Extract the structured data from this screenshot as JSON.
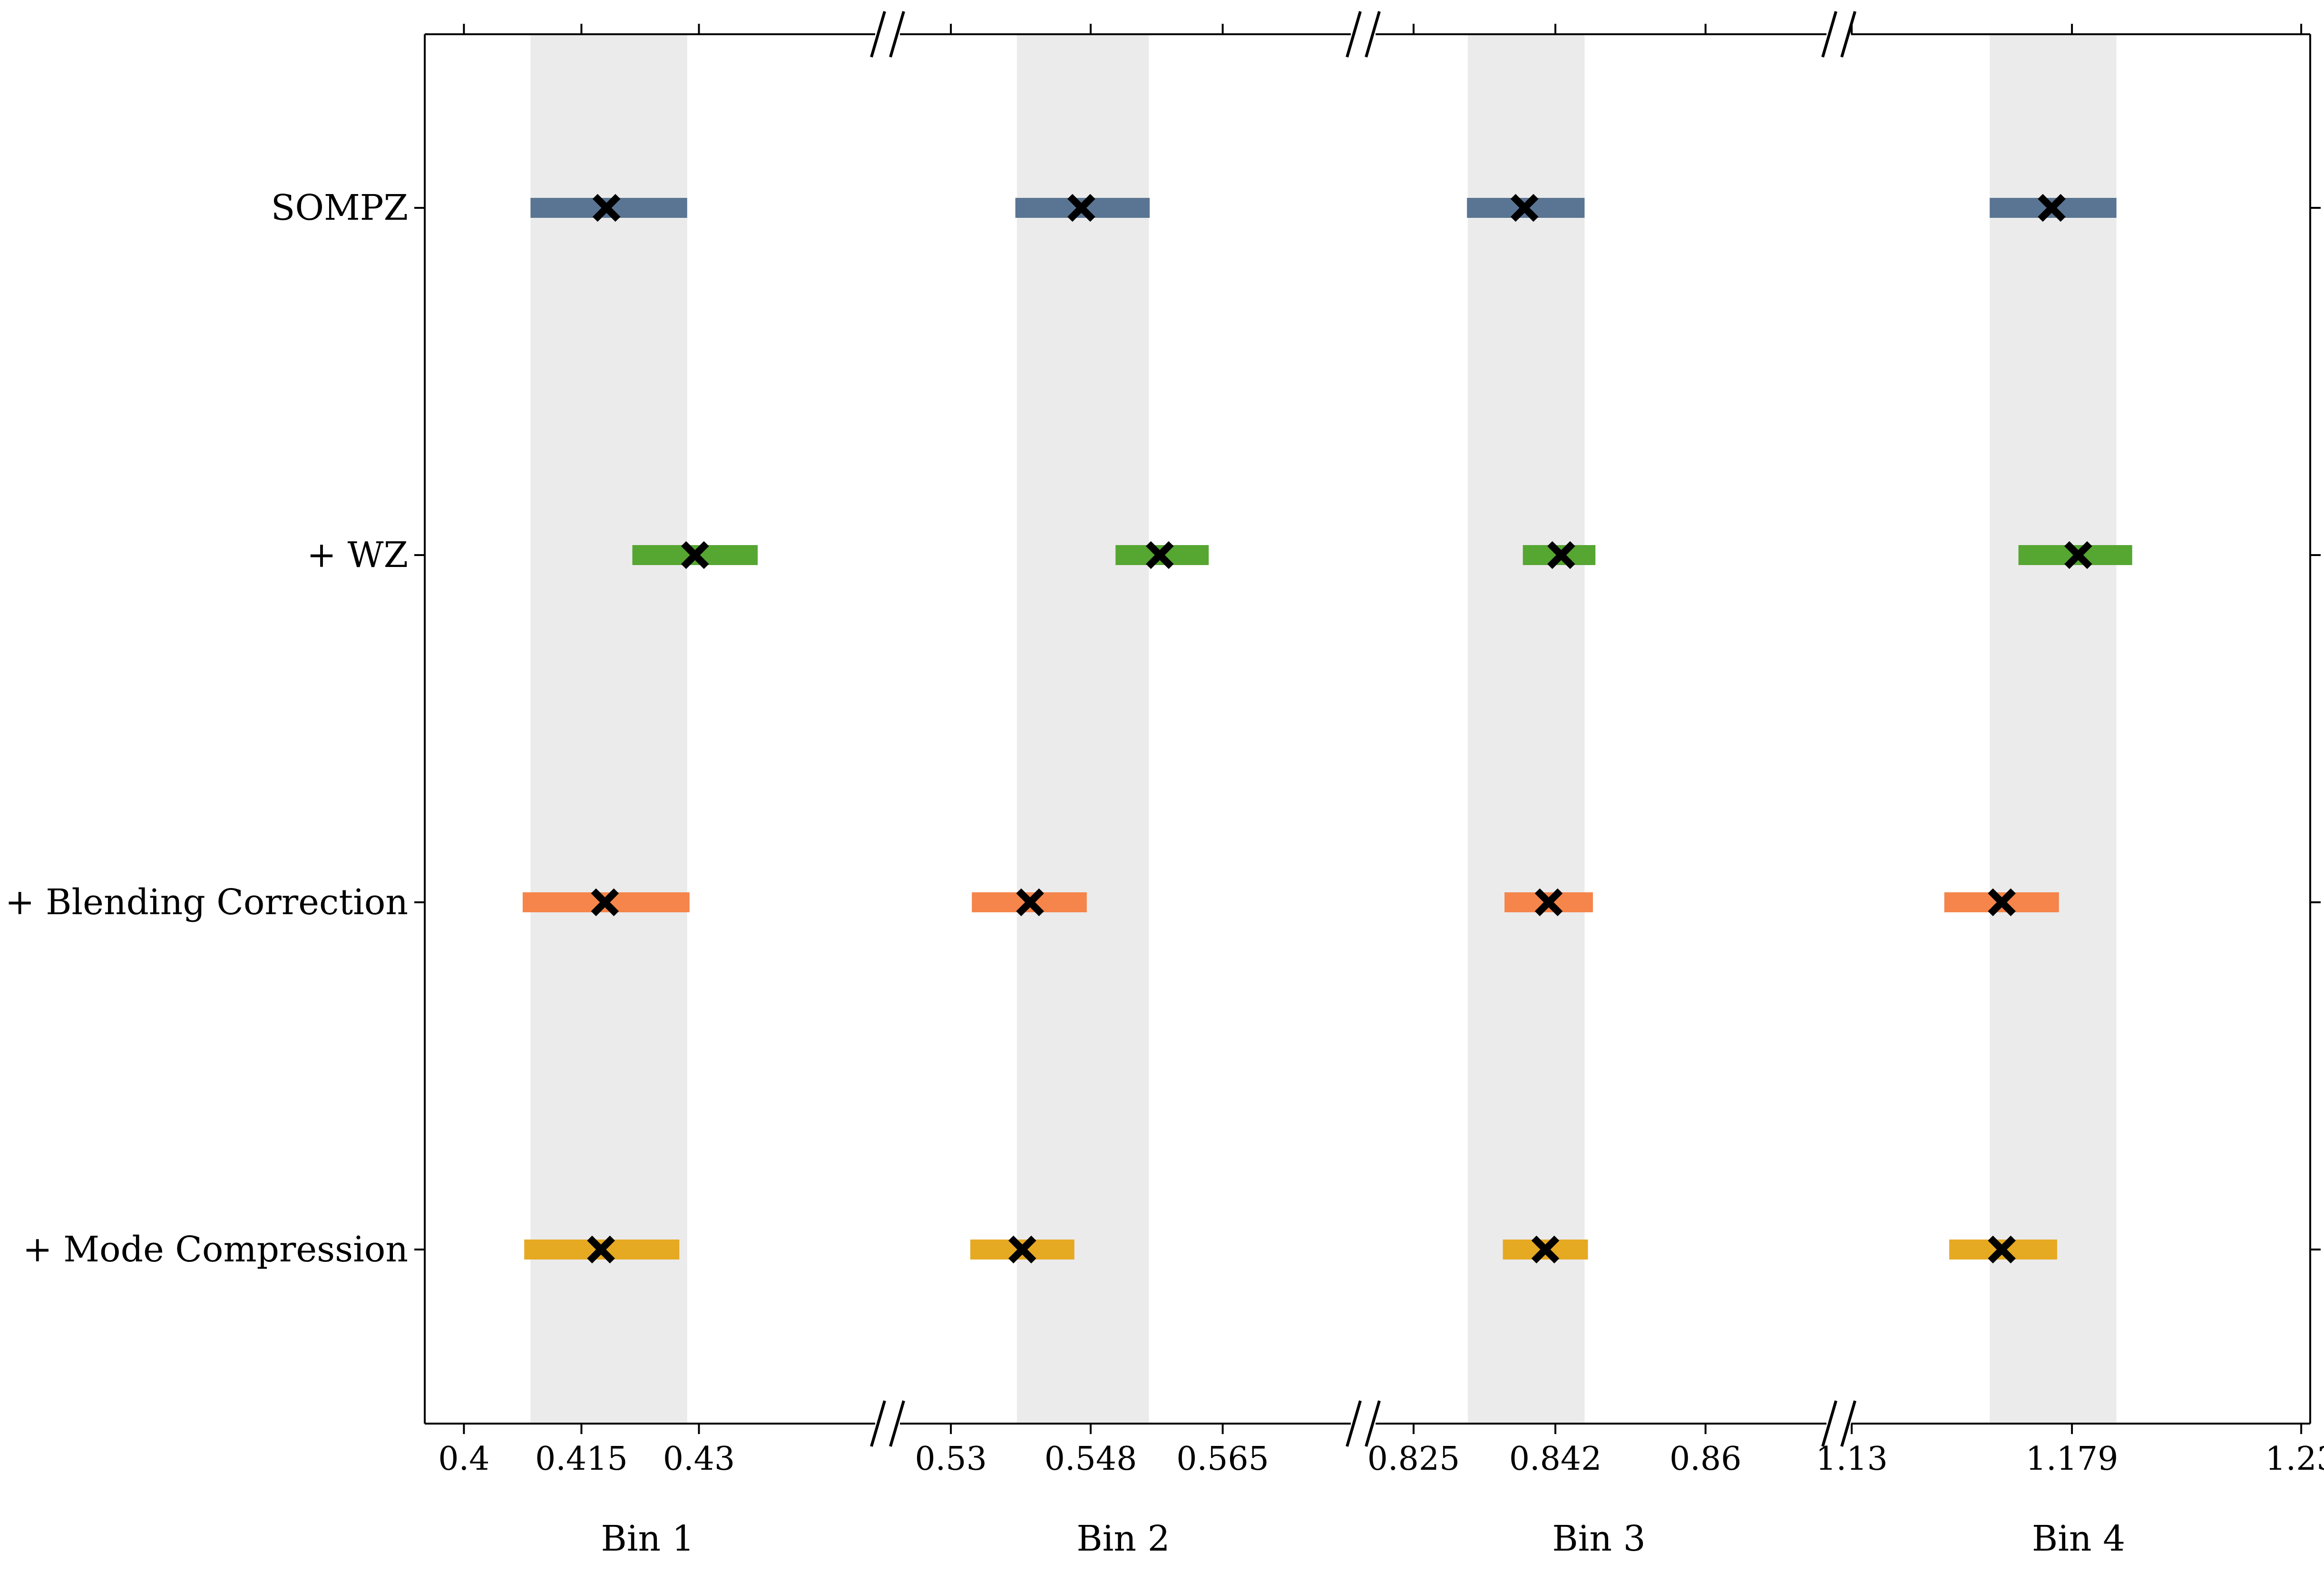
{
  "chart_data": {
    "type": "scatter",
    "subtype": "error-bar-intervals-broken-axis",
    "title": "",
    "rows": [
      "SOMPZ",
      "+ WZ",
      "+ Blending Correction",
      "+ Mode Compression"
    ],
    "colors": {
      "SOMPZ": "#5a7593",
      "+ WZ": "#56a632",
      "+ Blending Correction": "#f5854a",
      "+ Mode Compression": "#e6a922",
      "band": "#ebebeb",
      "marker": "#000000"
    },
    "marker": "x",
    "legend": "none",
    "grid": false,
    "panels": [
      {
        "label": "Bin 1",
        "xlim": [
          0.395,
          0.4525
        ],
        "ticks": [
          0.4,
          0.415,
          0.43
        ],
        "tick_labels": [
          "0.4",
          "0.415",
          "0.43"
        ],
        "band": [
          0.4085,
          0.4285
        ],
        "series": [
          {
            "row": "SOMPZ",
            "low": 0.4085,
            "high": 0.4285,
            "center": 0.4182
          },
          {
            "row": "+ WZ",
            "low": 0.4215,
            "high": 0.4375,
            "center": 0.4295
          },
          {
            "row": "+ Blending Correction",
            "low": 0.4075,
            "high": 0.4288,
            "center": 0.418
          },
          {
            "row": "+ Mode Compression",
            "low": 0.4077,
            "high": 0.4275,
            "center": 0.4175
          }
        ]
      },
      {
        "label": "Bin 2",
        "xlim": [
          0.5235,
          0.5815
        ],
        "ticks": [
          0.53,
          0.548,
          0.565
        ],
        "tick_labels": [
          "0.53",
          "0.548",
          "0.565"
        ],
        "band": [
          0.5385,
          0.5555
        ],
        "series": [
          {
            "row": "SOMPZ",
            "low": 0.5383,
            "high": 0.5556,
            "center": 0.5468
          },
          {
            "row": "+ WZ",
            "low": 0.5512,
            "high": 0.5632,
            "center": 0.5569
          },
          {
            "row": "+ Blending Correction",
            "low": 0.5327,
            "high": 0.5475,
            "center": 0.5402
          },
          {
            "row": "+ Mode Compression",
            "low": 0.5325,
            "high": 0.5459,
            "center": 0.5392
          }
        ]
      },
      {
        "label": "Bin 3",
        "xlim": [
          0.8205,
          0.8745
        ],
        "ticks": [
          0.825,
          0.842,
          0.86
        ],
        "tick_labels": [
          "0.825",
          "0.842",
          "0.86"
        ],
        "band": [
          0.8315,
          0.8455
        ],
        "series": [
          {
            "row": "SOMPZ",
            "low": 0.8314,
            "high": 0.8455,
            "center": 0.8383
          },
          {
            "row": "+ WZ",
            "low": 0.8381,
            "high": 0.8468,
            "center": 0.8427
          },
          {
            "row": "+ Blending Correction",
            "low": 0.8359,
            "high": 0.8465,
            "center": 0.8412
          },
          {
            "row": "+ Mode Compression",
            "low": 0.8357,
            "high": 0.8459,
            "center": 0.8408
          }
        ]
      },
      {
        "label": "Bin 4",
        "xlim": [
          1.13,
          1.232
        ],
        "ticks": [
          1.13,
          1.179,
          1.23
        ],
        "tick_labels": [
          "1.13",
          "1.179",
          "1.23"
        ],
        "band": [
          1.1607,
          1.1889
        ],
        "series": [
          {
            "row": "SOMPZ",
            "low": 1.1607,
            "high": 1.1889,
            "center": 1.1745
          },
          {
            "row": "+ WZ",
            "low": 1.1671,
            "high": 1.1924,
            "center": 1.1804
          },
          {
            "row": "+ Blending Correction",
            "low": 1.1506,
            "high": 1.1761,
            "center": 1.1634
          },
          {
            "row": "+ Mode Compression",
            "low": 1.1517,
            "high": 1.1757,
            "center": 1.1634
          }
        ]
      }
    ]
  }
}
